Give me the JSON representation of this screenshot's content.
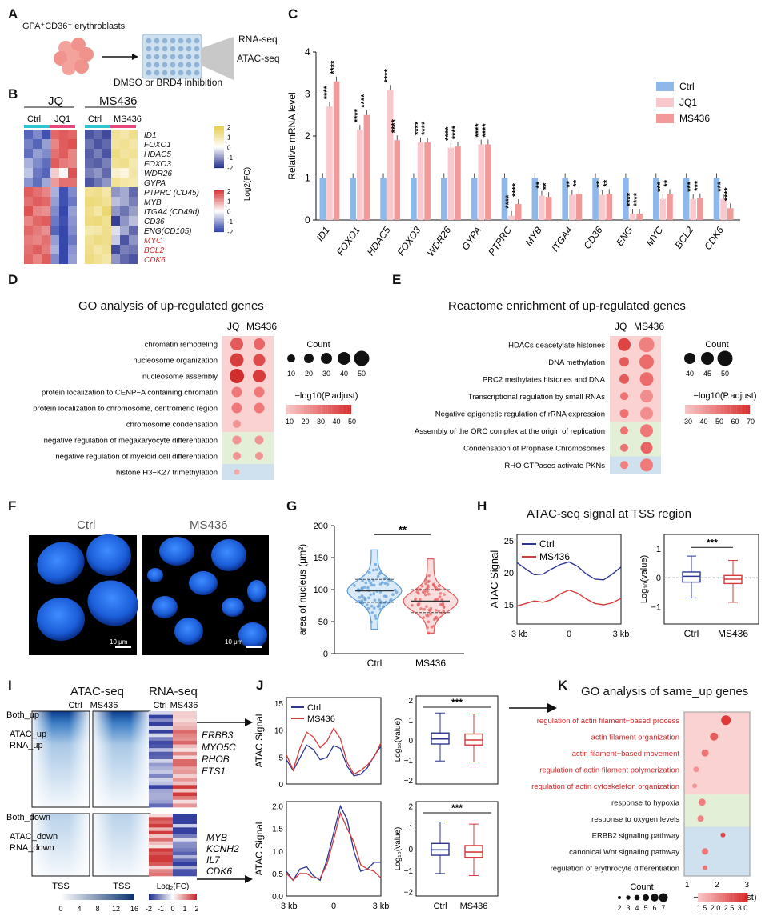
{
  "panels": {
    "A": {
      "letter": "A",
      "top_label": "GPA⁺CD36⁺ erythroblasts",
      "assays": [
        "RNA-seq",
        "ATAC-seq"
      ],
      "treatment": "DMSO or BRD4 inhibition"
    },
    "B": {
      "letter": "B",
      "groups": [
        "JQ",
        "MS436"
      ],
      "subgroups": [
        "Ctrl",
        "JQ1",
        "Ctrl",
        "MS436"
      ],
      "genes": [
        "ID1",
        "FOXO1",
        "HDAC5",
        "FOXO3",
        "WDR26",
        "GYPA",
        "PTPRC (CD45)",
        "MYB",
        "ITGA4 (CD49d)",
        "CD36",
        "ENG(CD105)",
        "MYC",
        "BCL2",
        "CDK6"
      ],
      "red_genes": [
        "MYC",
        "BCL2",
        "CDK6"
      ],
      "legend_label": "Log2(FC)",
      "legend_ticks_top": [
        "2",
        "1",
        "0",
        "-1",
        "-2"
      ],
      "legend_ticks_bottom": [
        "2",
        "1",
        "0",
        "-1",
        "-2"
      ]
    },
    "C": {
      "letter": "C",
      "chart_data": {
        "type": "bar",
        "ylabel": "Relative mRNA level",
        "ylim": [
          0,
          4
        ],
        "yticks": [
          "0",
          "1",
          "2",
          "3",
          "4"
        ],
        "categories": [
          "ID1",
          "FOXO1",
          "HDAC5",
          "FOXO3",
          "WDR26",
          "GYPA",
          "PTPRC",
          "MYB",
          "ITGA4",
          "CD36",
          "ENG",
          "MYC",
          "BCL2",
          "CDK6"
        ],
        "series": [
          {
            "name": "Ctrl",
            "color": "#8fb8ea",
            "values": [
              1,
              1,
              1,
              1,
              1,
              1,
              1,
              1,
              1,
              1,
              1,
              1,
              1,
              1
            ]
          },
          {
            "name": "JQ1",
            "color": "#f8c8cc",
            "values": [
              2.7,
              2.15,
              3.1,
              1.85,
              1.72,
              1.8,
              0.1,
              0.58,
              0.6,
              0.6,
              0.15,
              0.5,
              0.5,
              0.5
            ]
          },
          {
            "name": "MS436",
            "color": "#f29a9a",
            "values": [
              3.3,
              2.5,
              1.9,
              1.85,
              1.75,
              1.8,
              0.38,
              0.55,
              0.62,
              0.62,
              0.15,
              0.62,
              0.52,
              0.28
            ]
          }
        ],
        "sig_jq1": [
          "****",
          "****",
          "****",
          "****",
          "****",
          "****",
          "****",
          "**",
          "**",
          "**",
          "****",
          "***",
          "***",
          "***"
        ],
        "sig_ms436": [
          "****",
          "****",
          "****",
          "****",
          "****",
          "****",
          "****",
          "**",
          "**",
          "**",
          "****",
          "**",
          "***",
          "****"
        ],
        "legend": "top-right"
      }
    },
    "D": {
      "letter": "D",
      "title": "GO analysis of up-regulated genes",
      "columns": [
        "JQ",
        "MS436"
      ],
      "terms": [
        "chromatin remodeling",
        "nucleosome organization",
        "nucleosome assembly",
        "protein localization to CENP−A containing chromatin",
        "protein localization to chromosome, centromeric region",
        "chromosome condensation",
        "negative regulation of megakaryocyte differentiation",
        "negative regulation of myeloid cell differentiation",
        "histone H3−K27 trimethylation"
      ],
      "count_label": "Count",
      "count_ticks": [
        "10",
        "20",
        "30",
        "40",
        "50"
      ],
      "padj_label": "−log10(P.adjust)",
      "padj_ticks": [
        "10",
        "20",
        "30",
        "40",
        "50"
      ]
    },
    "E": {
      "letter": "E",
      "title": "Reactome enrichment of up-regulated genes",
      "columns": [
        "JQ",
        "MS436"
      ],
      "terms": [
        "HDACs deacetylate histones",
        "DNA methylation",
        "PRC2 methylates histones and DNA",
        "Transcriptional regulation by small RNAs",
        "Negative epigenetic regulation of rRNA expression",
        "Assembly of the ORC complex at the origin of replication",
        "Condensation of Prophase Chromosomes",
        "RHO GTPases activate PKNs"
      ],
      "count_label": "Count",
      "count_ticks": [
        "40",
        "45",
        "50"
      ],
      "padj_label": "−log10(P.adjust)",
      "padj_ticks": [
        "30",
        "40",
        "50",
        "60",
        "70"
      ]
    },
    "F": {
      "letter": "F",
      "labels": [
        "Ctrl",
        "MS436"
      ],
      "scalebar": "10 μm"
    },
    "G": {
      "letter": "G",
      "ylabel": "area of nucleus (μm²)",
      "yticks": [
        "0",
        "50",
        "100",
        "150",
        "200"
      ],
      "groups": [
        "Ctrl",
        "MS436"
      ],
      "sig": "**"
    },
    "H": {
      "letter": "H",
      "title": "ATAC-seq signal at TSS region",
      "ylabel": "ATAC Signal",
      "yticks": [
        "15",
        "20",
        "25"
      ],
      "xticks": [
        "−3 kb",
        "0",
        "3 kb"
      ],
      "legend": [
        "Ctrl",
        "MS436"
      ],
      "box_ylabel": "Log₁₀(value)",
      "box_yticks": [
        "1",
        "0",
        "−1"
      ],
      "box_groups": [
        "Ctrl",
        "MS436"
      ],
      "sig": "***"
    },
    "I": {
      "letter": "I",
      "atac_title": "ATAC-seq",
      "rna_title": "RNA-seq",
      "atac_cols": [
        "Ctrl",
        "MS436"
      ],
      "rna_cols": [
        "Ctrl",
        "MS436"
      ],
      "rows_top": [
        "Both_up",
        "ATAC_up",
        "RNA_up"
      ],
      "rows_bottom": [
        "Both_down",
        "ATAC_down",
        "RNA_down"
      ],
      "genes_up": [
        "ERBB3",
        "MYO5C",
        "RHOB",
        "ETS1"
      ],
      "genes_down": [
        "MYB",
        "KCNH2",
        "IL7",
        "CDK6"
      ],
      "tss": [
        "TSS",
        "TSS"
      ],
      "atac_ticks": [
        "0",
        "4",
        "8",
        "12",
        "16"
      ],
      "rna_ticks": [
        "-2",
        "-1",
        "0",
        "1",
        "2"
      ],
      "rna_legend": "Log₂(FC)"
    },
    "J": {
      "letter": "J",
      "ylabel": "ATAC Signal",
      "top_yticks": [
        "0",
        "5",
        "10",
        "15"
      ],
      "bottom_yticks": [
        "0.0",
        "0.5",
        "1.0",
        "1.5",
        "2.0"
      ],
      "xticks": [
        "−3 kb",
        "0",
        "3 kb"
      ],
      "legend": [
        "Ctrl",
        "MS436"
      ],
      "box_ylabel": "Log₁₀(value)",
      "box_yticks": [
        "2",
        "1",
        "0",
        "−1",
        "−2"
      ],
      "box_groups": [
        "Ctrl",
        "MS436"
      ],
      "sig": "***"
    },
    "K": {
      "letter": "K",
      "title": "GO analysis of same_up genes",
      "terms": [
        "regulation of actin filament−based process",
        "actin filament organization",
        "actin filament−based movement",
        "regulation of actin filament polymerization",
        "regulation of actin cytoskeleton organization",
        "response to hypoxia",
        "response to oxygen levels",
        "ERBB2 signaling pathway",
        "canonical Wnt signaling pathway",
        "regulation of erythrocyte differentiation"
      ],
      "red_terms_count": 5,
      "xticks": [
        "1",
        "2",
        "3"
      ],
      "xlabel": "−log10(P.adjust)",
      "count_label": "Count",
      "count_ticks": [
        "2",
        "3",
        "4",
        "5",
        "6",
        "7"
      ],
      "padj_ticks": [
        "1.5",
        "2.0",
        "2.5",
        "3.0"
      ]
    }
  }
}
